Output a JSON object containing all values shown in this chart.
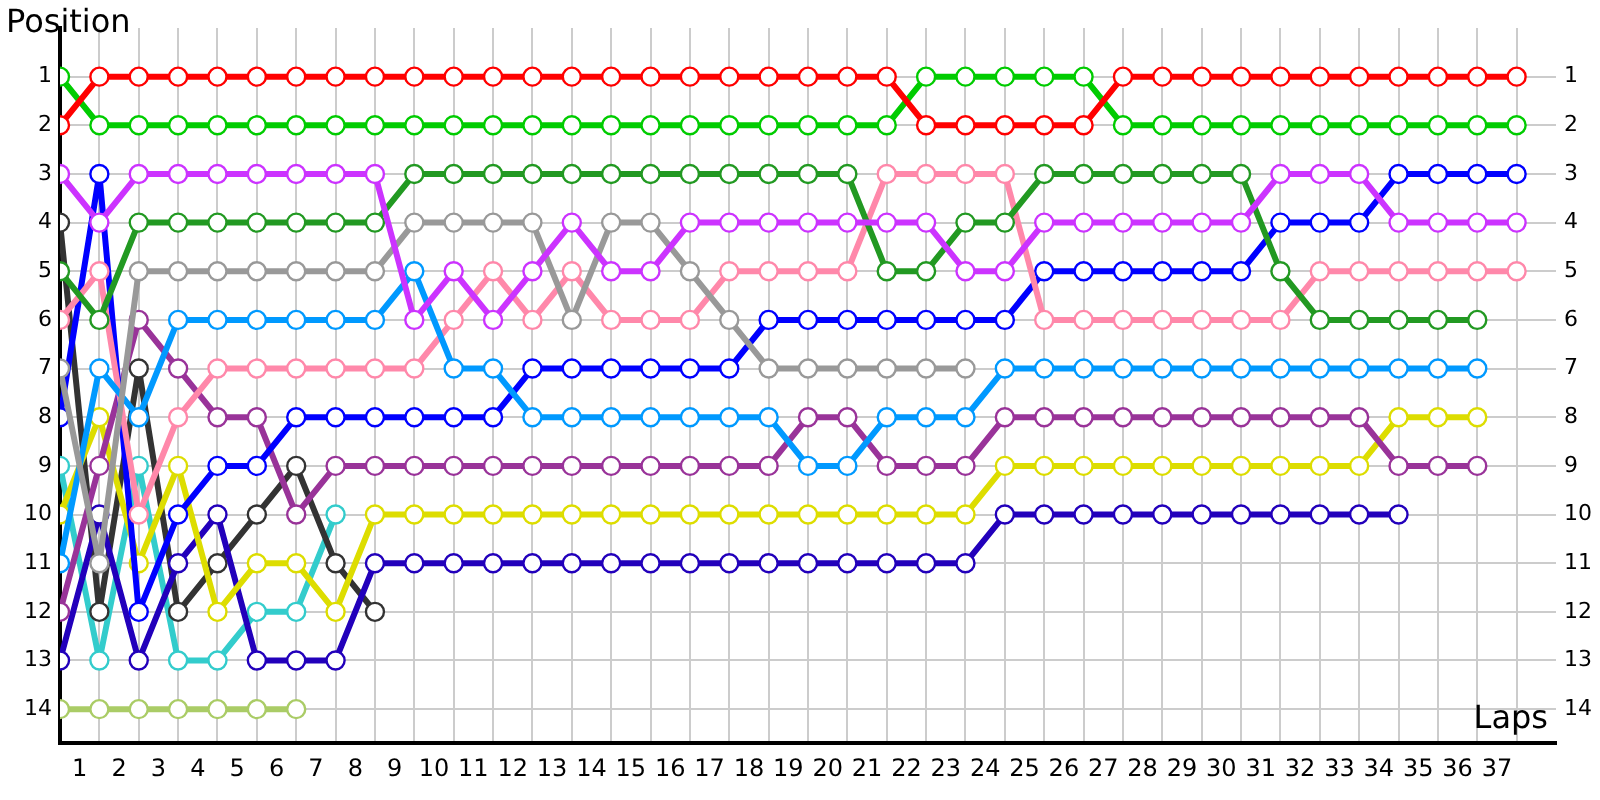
{
  "chart_data": {
    "type": "line",
    "ylabel": "Position",
    "xlabel": "Laps",
    "x": [
      0,
      1,
      2,
      3,
      4,
      5,
      6,
      7,
      8,
      9,
      10,
      11,
      12,
      13,
      14,
      15,
      16,
      17,
      18,
      19,
      20,
      21,
      22,
      23,
      24,
      25,
      26,
      27,
      28,
      29,
      30,
      31,
      32,
      33,
      34,
      35,
      36,
      37
    ],
    "series": [
      {
        "color": "#ff0000",
        "values": [
          2,
          1,
          1,
          1,
          1,
          1,
          1,
          1,
          1,
          1,
          1,
          1,
          1,
          1,
          1,
          1,
          1,
          1,
          1,
          1,
          1,
          1,
          2,
          2,
          2,
          2,
          2,
          1,
          1,
          1,
          1,
          1,
          1,
          1,
          1,
          1,
          1,
          1
        ]
      },
      {
        "color": "#00cc00",
        "values": [
          1,
          2,
          2,
          2,
          2,
          2,
          2,
          2,
          2,
          2,
          2,
          2,
          2,
          2,
          2,
          2,
          2,
          2,
          2,
          2,
          2,
          2,
          1,
          1,
          1,
          1,
          1,
          2,
          2,
          2,
          2,
          2,
          2,
          2,
          2,
          2,
          2,
          2
        ]
      },
      {
        "color": "#cc33ff",
        "values": [
          3,
          4,
          3,
          3,
          3,
          3,
          3,
          3,
          3,
          6,
          5,
          6,
          5,
          4,
          5,
          5,
          4,
          4,
          4,
          4,
          4,
          4,
          4,
          5,
          5,
          4,
          4,
          4,
          4,
          4,
          4,
          3,
          3,
          3,
          4,
          4,
          4,
          4
        ]
      },
      {
        "color": "#229922",
        "values": [
          5,
          6,
          4,
          4,
          4,
          4,
          4,
          4,
          4,
          3,
          3,
          3,
          3,
          3,
          3,
          3,
          3,
          3,
          3,
          3,
          3,
          5,
          5,
          4,
          4,
          3,
          3,
          3,
          3,
          3,
          3,
          5,
          6,
          6,
          6,
          6,
          6,
          null
        ]
      },
      {
        "color": "#999999",
        "values": [
          7,
          11,
          5,
          5,
          5,
          5,
          5,
          5,
          5,
          4,
          4,
          4,
          4,
          6,
          4,
          4,
          5,
          6,
          7,
          7,
          7,
          7,
          7,
          7,
          null,
          null,
          null,
          null,
          null,
          null,
          null,
          null,
          null,
          null,
          null,
          null,
          null,
          null
        ]
      },
      {
        "color": "#0099ff",
        "values": [
          11,
          7,
          8,
          6,
          6,
          6,
          6,
          6,
          6,
          5,
          7,
          7,
          8,
          8,
          8,
          8,
          8,
          8,
          8,
          9,
          9,
          8,
          8,
          8,
          7,
          7,
          7,
          7,
          7,
          7,
          7,
          7,
          7,
          7,
          7,
          7,
          7,
          null
        ]
      },
      {
        "color": "#ff88aa",
        "values": [
          6,
          5,
          10,
          8,
          7,
          7,
          7,
          7,
          7,
          7,
          6,
          5,
          6,
          5,
          6,
          6,
          6,
          5,
          5,
          5,
          5,
          3,
          3,
          3,
          3,
          6,
          6,
          6,
          6,
          6,
          6,
          6,
          5,
          5,
          5,
          5,
          5,
          5
        ]
      },
      {
        "color": "#0000ff",
        "values": [
          8,
          3,
          12,
          10,
          9,
          9,
          8,
          8,
          8,
          8,
          8,
          8,
          7,
          7,
          7,
          7,
          7,
          7,
          6,
          6,
          6,
          6,
          6,
          6,
          6,
          5,
          5,
          5,
          5,
          5,
          5,
          4,
          4,
          4,
          3,
          3,
          3,
          3
        ]
      },
      {
        "color": "#993399",
        "values": [
          12,
          9,
          6,
          7,
          8,
          8,
          10,
          9,
          9,
          9,
          9,
          9,
          9,
          9,
          9,
          9,
          9,
          9,
          9,
          8,
          8,
          9,
          9,
          9,
          8,
          8,
          8,
          8,
          8,
          8,
          8,
          8,
          8,
          8,
          9,
          9,
          9,
          null
        ]
      },
      {
        "color": "#dddd00",
        "values": [
          10,
          8,
          11,
          9,
          12,
          11,
          11,
          12,
          10,
          10,
          10,
          10,
          10,
          10,
          10,
          10,
          10,
          10,
          10,
          10,
          10,
          10,
          10,
          10,
          9,
          9,
          9,
          9,
          9,
          9,
          9,
          9,
          9,
          9,
          8,
          8,
          8,
          null
        ]
      },
      {
        "color": "#2200bb",
        "values": [
          13,
          10,
          13,
          11,
          10,
          13,
          13,
          13,
          11,
          11,
          11,
          11,
          11,
          11,
          11,
          11,
          11,
          11,
          11,
          11,
          11,
          11,
          11,
          11,
          10,
          10,
          10,
          10,
          10,
          10,
          10,
          10,
          10,
          10,
          10,
          null,
          null,
          null
        ]
      },
      {
        "color": "#333333",
        "values": [
          4,
          12,
          7,
          12,
          11,
          10,
          9,
          11,
          12,
          null,
          null,
          null,
          null,
          null,
          null,
          null,
          null,
          null,
          null,
          null,
          null,
          null,
          null,
          null,
          null,
          null,
          null,
          null,
          null,
          null,
          null,
          null,
          null,
          null,
          null,
          null,
          null,
          null
        ]
      },
      {
        "color": "#33cccc",
        "values": [
          9,
          13,
          9,
          13,
          13,
          12,
          12,
          10,
          null,
          null,
          null,
          null,
          null,
          null,
          null,
          null,
          null,
          null,
          null,
          null,
          null,
          null,
          null,
          null,
          null,
          null,
          null,
          null,
          null,
          null,
          null,
          null,
          null,
          null,
          null,
          null,
          null,
          null
        ]
      },
      {
        "color": "#aacc66",
        "values": [
          14,
          14,
          14,
          14,
          14,
          14,
          14,
          null,
          null,
          null,
          null,
          null,
          null,
          null,
          null,
          null,
          null,
          null,
          null,
          null,
          null,
          null,
          null,
          null,
          null,
          null,
          null,
          null,
          null,
          null,
          null,
          null,
          null,
          null,
          null,
          null,
          null,
          null
        ]
      }
    ],
    "xlim": [
      0,
      38
    ],
    "xticks": [
      {
        "value": 0,
        "label": null
      },
      {
        "value": 0.5,
        "label": "1"
      },
      {
        "value": 1,
        "label": null
      },
      {
        "value": 1.5,
        "label": "2"
      },
      {
        "value": 2,
        "label": null
      },
      {
        "value": 2.5,
        "label": "3"
      },
      {
        "value": 3,
        "label": null
      },
      {
        "value": 3.5,
        "label": "4"
      },
      {
        "value": 4,
        "label": null
      },
      {
        "value": 4.5,
        "label": "5"
      },
      {
        "value": 5,
        "label": null
      },
      {
        "value": 5.5,
        "label": "6"
      },
      {
        "value": 6,
        "label": null
      },
      {
        "value": 6.5,
        "label": "7"
      },
      {
        "value": 7,
        "label": null
      },
      {
        "value": 7.5,
        "label": "8"
      },
      {
        "value": 8,
        "label": null
      },
      {
        "value": 8.5,
        "label": "9"
      },
      {
        "value": 9,
        "label": null
      },
      {
        "value": 9.5,
        "label": "10"
      },
      {
        "value": 10,
        "label": null
      },
      {
        "value": 10.5,
        "label": "11"
      },
      {
        "value": 11,
        "label": null
      },
      {
        "value": 11.5,
        "label": "12"
      },
      {
        "value": 12,
        "label": null
      },
      {
        "value": 12.5,
        "label": "13"
      },
      {
        "value": 13,
        "label": null
      },
      {
        "value": 13.5,
        "label": "14"
      },
      {
        "value": 14,
        "label": null
      },
      {
        "value": 14.5,
        "label": "15"
      },
      {
        "value": 15,
        "label": null
      },
      {
        "value": 15.5,
        "label": "16"
      },
      {
        "value": 16,
        "label": null
      },
      {
        "value": 16.5,
        "label": "17"
      },
      {
        "value": 17,
        "label": null
      },
      {
        "value": 17.5,
        "label": "18"
      },
      {
        "value": 18,
        "label": null
      },
      {
        "value": 18.5,
        "label": "19"
      },
      {
        "value": 19,
        "label": null
      },
      {
        "value": 19.5,
        "label": "20"
      },
      {
        "value": 20,
        "label": null
      },
      {
        "value": 20.5,
        "label": "21"
      },
      {
        "value": 21,
        "label": null
      },
      {
        "value": 21.5,
        "label": "22"
      },
      {
        "value": 22,
        "label": null
      },
      {
        "value": 22.5,
        "label": "23"
      },
      {
        "value": 23,
        "label": null
      },
      {
        "value": 23.5,
        "label": "24"
      },
      {
        "value": 24,
        "label": null
      },
      {
        "value": 24.5,
        "label": "25"
      },
      {
        "value": 25,
        "label": null
      },
      {
        "value": 25.5,
        "label": "26"
      },
      {
        "value": 26,
        "label": null
      },
      {
        "value": 26.5,
        "label": "27"
      },
      {
        "value": 27,
        "label": null
      },
      {
        "value": 27.5,
        "label": "28"
      },
      {
        "value": 28,
        "label": null
      },
      {
        "value": 28.5,
        "label": "29"
      },
      {
        "value": 29,
        "label": null
      },
      {
        "value": 29.5,
        "label": "30"
      },
      {
        "value": 30,
        "label": null
      },
      {
        "value": 30.5,
        "label": "31"
      },
      {
        "value": 31,
        "label": null
      },
      {
        "value": 31.5,
        "label": "32"
      },
      {
        "value": 32,
        "label": null
      },
      {
        "value": 32.5,
        "label": "33"
      },
      {
        "value": 33,
        "label": null
      },
      {
        "value": 33.5,
        "label": "34"
      },
      {
        "value": 34,
        "label": null
      },
      {
        "value": 34.5,
        "label": "35"
      },
      {
        "value": 35,
        "label": null
      },
      {
        "value": 35.5,
        "label": "36"
      },
      {
        "value": 36,
        "label": null
      },
      {
        "value": 36.5,
        "label": "37"
      },
      {
        "value": 37,
        "label": null
      }
    ],
    "ylim": [
      14.7,
      0
    ],
    "yticks": [
      1,
      2,
      3,
      4,
      5,
      6,
      7,
      8,
      9,
      10,
      11,
      12,
      13,
      14
    ],
    "y2lim": [
      14.7,
      0
    ],
    "y2ticks": [
      1,
      2,
      3,
      4,
      5,
      6,
      7,
      8,
      9,
      10,
      11,
      12,
      13,
      14
    ],
    "grid": true,
    "legend": false,
    "marker": "circle",
    "line_style": "solid"
  }
}
